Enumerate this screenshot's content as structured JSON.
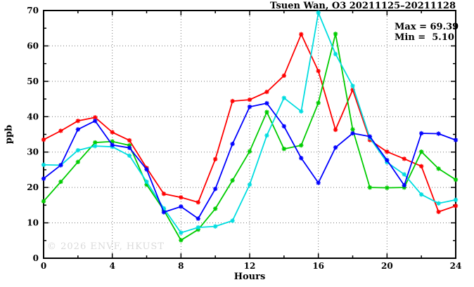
{
  "title": "Tsuen Wan, O3 20211125–20211128",
  "annotations": {
    "max_label": "Max = 69.39",
    "min_label": "Min =  5.10"
  },
  "watermark": "© 2026 ENVF, HKUST",
  "chart_data": {
    "type": "line",
    "title": "Tsuen Wan, O3 20211125–20211128",
    "xlabel": "Hours",
    "ylabel": "ppb",
    "xlim": [
      0,
      24
    ],
    "ylim": [
      0,
      70
    ],
    "x_major_ticks": [
      0,
      4,
      8,
      12,
      16,
      20,
      24
    ],
    "x_minor_ticks": [
      2,
      6,
      10,
      14,
      18,
      22
    ],
    "y_major_ticks": [
      0,
      10,
      20,
      30,
      40,
      50,
      60,
      70
    ],
    "y_minor_ticks": [
      5,
      15,
      25,
      35,
      45,
      55,
      65
    ],
    "grid": true,
    "grid_color": "#777777",
    "legend": "none",
    "marker": "asterisk",
    "max": 69.39,
    "min": 5.1,
    "x": [
      0,
      1,
      2,
      3,
      4,
      5,
      6,
      7,
      8,
      9,
      10,
      11,
      12,
      13,
      14,
      15,
      16,
      17,
      18,
      19,
      20,
      21,
      22,
      23,
      24
    ],
    "series": [
      {
        "name": "series-red",
        "color": "#ff0000",
        "values": [
          33.5,
          36.0,
          38.8,
          39.8,
          35.6,
          33.3,
          25.5,
          18.2,
          17.2,
          15.8,
          28.0,
          44.4,
          44.8,
          47.0,
          51.6,
          63.3,
          52.9,
          36.3,
          47.6,
          33.4,
          30.1,
          28.1,
          26.0,
          13.1,
          14.8
        ]
      },
      {
        "name": "series-green",
        "color": "#00cc00",
        "values": [
          16.1,
          21.6,
          27.2,
          32.7,
          33.0,
          31.9,
          20.8,
          13.6,
          5.1,
          8.1,
          14.0,
          22.0,
          30.2,
          41.3,
          30.9,
          31.9,
          43.9,
          63.4,
          36.4,
          20.0,
          19.9,
          20.0,
          30.1,
          25.3,
          22.2
        ]
      },
      {
        "name": "series-cyan",
        "color": "#00dde0",
        "values": [
          26.4,
          26.3,
          30.5,
          31.7,
          31.5,
          29.0,
          21.6,
          14.1,
          7.2,
          8.7,
          9.0,
          10.6,
          20.8,
          34.7,
          45.3,
          41.5,
          69.39,
          57.7,
          48.7,
          34.0,
          27.1,
          23.7,
          18.0,
          15.5,
          16.5
        ]
      },
      {
        "name": "series-blue",
        "color": "#0000ff",
        "values": [
          22.5,
          26.3,
          36.4,
          38.8,
          32.0,
          31.2,
          25.1,
          13.0,
          14.6,
          11.2,
          19.6,
          32.3,
          42.8,
          43.8,
          37.3,
          28.3,
          21.3,
          31.3,
          35.3,
          34.4,
          27.7,
          20.6,
          35.3,
          35.2,
          33.4
        ]
      }
    ]
  }
}
